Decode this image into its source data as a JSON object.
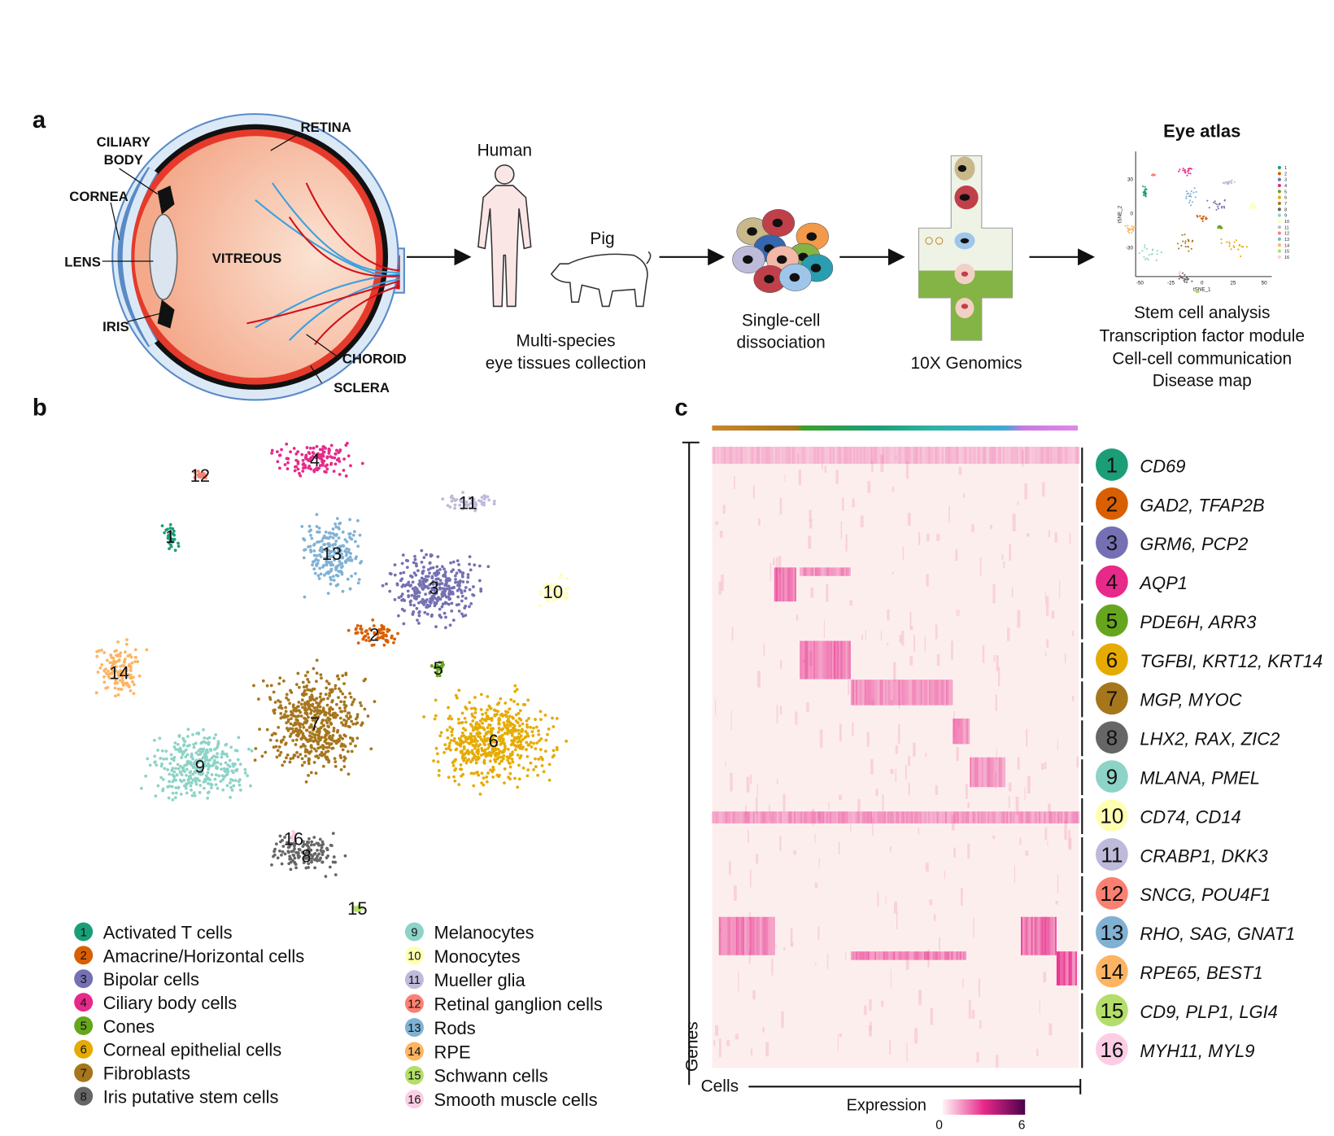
{
  "panel_a": {
    "label": "a",
    "eye_labels": {
      "ciliary_body": [
        "CILIARY",
        "BODY"
      ],
      "retina": "RETINA",
      "cornea": "CORNEA",
      "lens": "LENS",
      "vitreous": "VITREOUS",
      "iris": "IRIS",
      "choroid": "CHOROID",
      "sclera": "SCLERA"
    },
    "human": "Human",
    "pig": "Pig",
    "collection": [
      "Multi-species",
      "eye tissues collection"
    ],
    "dissociation": [
      "Single-cell",
      "dissociation"
    ],
    "sequencing": "10X Genomics",
    "atlas_title": "Eye atlas",
    "atlas_plot": {
      "x_label": "tSNE_1",
      "y_label": "tSNE_2",
      "xticks": [
        "-50",
        "-25",
        "0",
        "25",
        "50"
      ],
      "yticks": [
        "30",
        "0",
        "-30"
      ]
    },
    "analyses": [
      "Stem cell analysis",
      "Transcription factor module",
      "Cell-cell communication",
      "Disease map"
    ]
  },
  "panel_b": {
    "label": "b"
  },
  "panel_c": {
    "label": "c",
    "y_label": "Genes",
    "x_label": "Cells",
    "colorbar": {
      "title": "Expression",
      "min": 0,
      "max": 6
    }
  },
  "clusters": [
    {
      "number": "1",
      "name": "Activated T cells",
      "color": "#1b9e77",
      "markers": "CD69"
    },
    {
      "number": "2",
      "name": "Amacrine/Horizontal cells",
      "color": "#d95f02",
      "markers": "GAD2, TFAP2B"
    },
    {
      "number": "3",
      "name": "Bipolar cells",
      "color": "#7570b3",
      "markers": "GRM6, PCP2"
    },
    {
      "number": "4",
      "name": "Ciliary body cells",
      "color": "#e7298a",
      "markers": "AQP1"
    },
    {
      "number": "5",
      "name": "Cones",
      "color": "#66a61e",
      "markers": "PDE6H, ARR3"
    },
    {
      "number": "6",
      "name": "Corneal epithelial cells",
      "color": "#e6ab02",
      "markers": "TGFBI, KRT12, KRT14"
    },
    {
      "number": "7",
      "name": "Fibroblasts",
      "color": "#a6761d",
      "markers": "MGP, MYOC"
    },
    {
      "number": "8",
      "name": "Iris putative stem cells",
      "color": "#666666",
      "markers": "LHX2, RAX, ZIC2"
    },
    {
      "number": "9",
      "name": "Melanocytes",
      "color": "#8dd3c7",
      "markers": "MLANA, PMEL"
    },
    {
      "number": "10",
      "name": "Monocytes",
      "color": "#ffffb3",
      "markers": "CD74, CD14"
    },
    {
      "number": "11",
      "name": "Mueller glia",
      "color": "#bebada",
      "markers": "CRABP1, DKK3"
    },
    {
      "number": "12",
      "name": "Retinal ganglion cells",
      "color": "#fb8072",
      "markers": "SNCG, POU4F1"
    },
    {
      "number": "13",
      "name": "Rods",
      "color": "#80b1d3",
      "markers": "RHO, SAG, GNAT1"
    },
    {
      "number": "14",
      "name": "RPE",
      "color": "#fdb462",
      "markers": "RPE65, BEST1"
    },
    {
      "number": "15",
      "name": "Schwann cells",
      "color": "#b3de69",
      "markers": "CD9, PLP1, LGI4"
    },
    {
      "number": "16",
      "name": "Smooth muscle cells",
      "color": "#fccde5",
      "markers": "MYH11, MYL9"
    }
  ]
}
